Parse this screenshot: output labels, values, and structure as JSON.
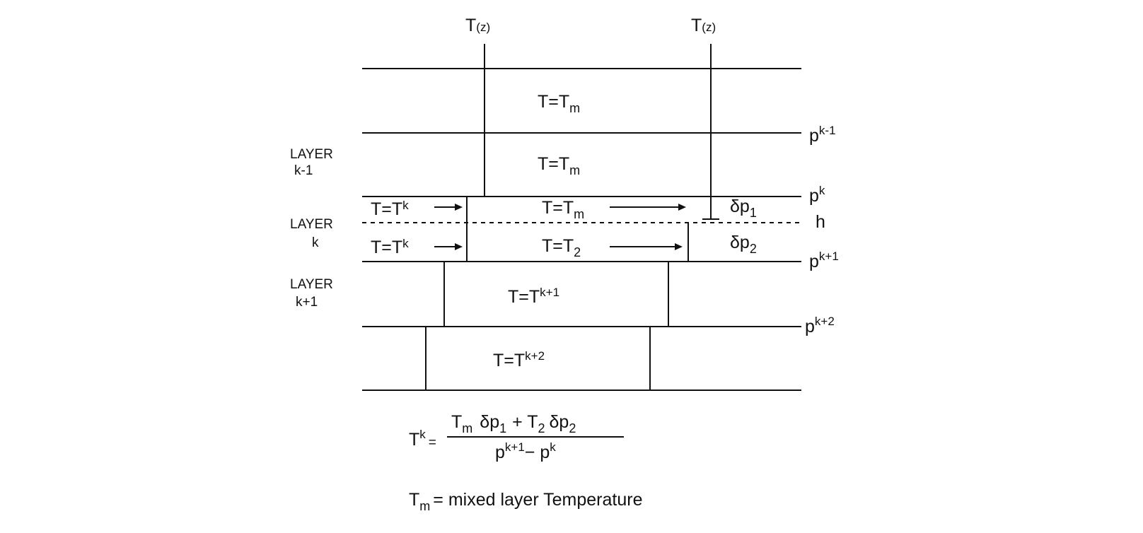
{
  "diagram": {
    "tz_label_left": "T",
    "tz_label_left_arg": "(z)",
    "tz_label_right": "T",
    "tz_label_right_arg": "(z)",
    "rows": {
      "top_1": {
        "t": "T=T",
        "sub": "m"
      },
      "top_2": {
        "t": "T=T",
        "sub": "m"
      },
      "k_upper_left": {
        "t": "T=T",
        "sup": "k"
      },
      "k_upper_mid": {
        "t": "T=T",
        "sub": "m"
      },
      "k_lower_left": {
        "t": "T=T",
        "sup": "k"
      },
      "k_lower_mid": {
        "t": "T=T",
        "sub": "2"
      },
      "k1": {
        "t": "T=T",
        "sup": "k+1"
      },
      "k2": {
        "t": "T=T",
        "sup": "k+2"
      }
    },
    "layers": {
      "km1_line1": "LAYER",
      "km1_line2": "k-1",
      "k_line1": "LAYER",
      "k_line2": "k",
      "kp1_line1": "LAYER",
      "kp1_line2": "k+1"
    },
    "right_labels": {
      "pkm1": {
        "t": "p",
        "sup": "k-1"
      },
      "pk": {
        "t": "p",
        "sup": "k"
      },
      "h": "h",
      "pkp1": {
        "t": "p",
        "sup": "k+1"
      },
      "pkp2": {
        "t": "p",
        "sup": "k+2"
      }
    },
    "deltas": {
      "dp1": {
        "t": "δp",
        "sub": "1"
      },
      "dp2": {
        "t": "δp",
        "sub": "2"
      }
    },
    "formula": {
      "lhs": "T",
      "lhs_sup": "k",
      "eq": "=",
      "num_a": "T",
      "num_a_sub": "m",
      "num_b": "δp",
      "num_b_sub": "1",
      "num_plus": "+ T",
      "num_c_sub": "2",
      "num_d": "δp",
      "num_d_sub": "2",
      "den_a": "p",
      "den_a_sup": "k+1",
      "den_minus": "− p",
      "den_b_sup": "k"
    },
    "legend": {
      "t": "T",
      "sub": "m",
      "text": "= mixed layer Temperature"
    }
  }
}
